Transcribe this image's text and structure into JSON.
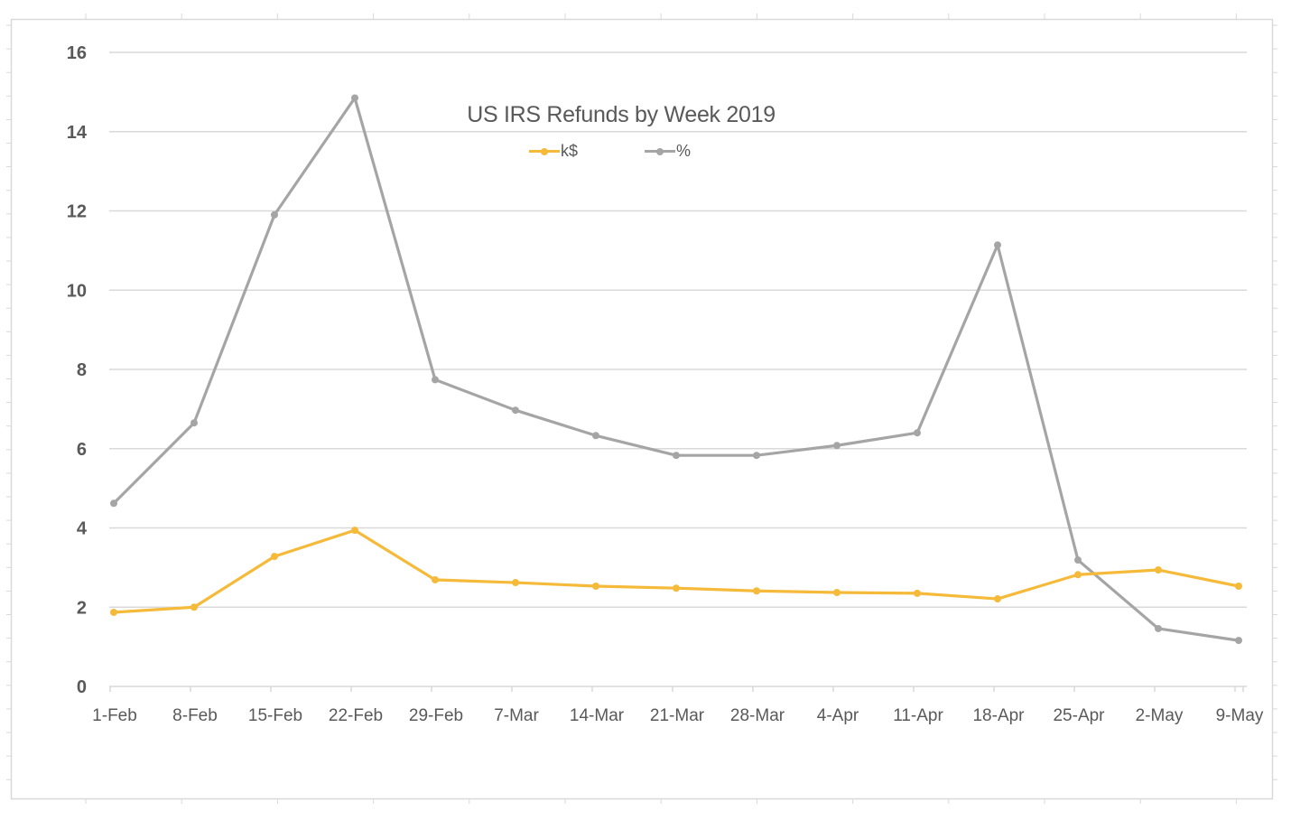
{
  "chart_data": {
    "type": "line",
    "title": "US IRS Refunds by Week 2019",
    "xlabel": "",
    "ylabel": "",
    "ylim": [
      0,
      16
    ],
    "yticks": [
      0,
      2,
      4,
      6,
      8,
      10,
      12,
      14,
      16
    ],
    "grid": true,
    "legend_position": "top",
    "categories": [
      "1-Feb",
      "8-Feb",
      "15-Feb",
      "22-Feb",
      "29-Feb",
      "7-Mar",
      "14-Mar",
      "21-Mar",
      "28-Mar",
      "4-Apr",
      "11-Apr",
      "18-Apr",
      "25-Apr",
      "2-May",
      "9-May"
    ],
    "series": [
      {
        "name": "k$",
        "color": "#F5BA3A",
        "values": [
          1.87,
          2.0,
          3.28,
          3.94,
          2.69,
          2.62,
          2.53,
          2.48,
          2.41,
          2.37,
          2.35,
          2.21,
          2.82,
          2.94,
          2.53
        ]
      },
      {
        "name": "%",
        "color": "#A5A5A5",
        "values": [
          4.62,
          6.65,
          11.9,
          14.85,
          7.74,
          6.97,
          6.33,
          5.83,
          5.83,
          6.08,
          6.4,
          11.14,
          3.19,
          1.46,
          1.16
        ]
      }
    ]
  },
  "chart": {
    "title": "US IRS Refunds by Week 2019",
    "legend": [
      {
        "label": "k$",
        "color": "#F5BA3A"
      },
      {
        "label": "%",
        "color": "#A5A5A5"
      }
    ]
  },
  "colors": {
    "axis_text": "#595959",
    "gridline": "#D9D9D9",
    "frame": "#D9D9D9"
  }
}
